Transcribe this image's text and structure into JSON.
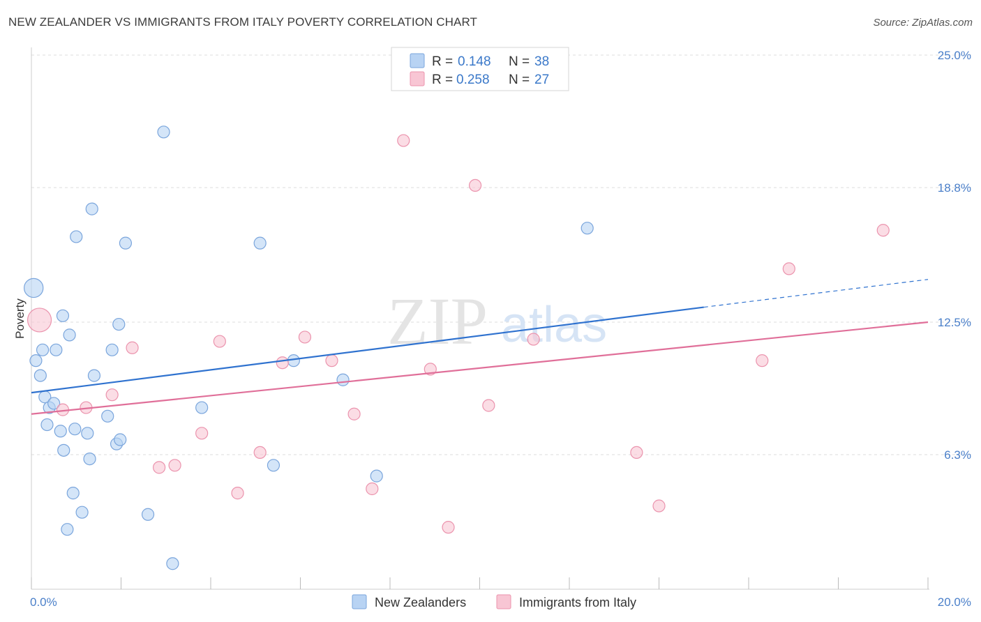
{
  "title": "NEW ZEALANDER VS IMMIGRANTS FROM ITALY POVERTY CORRELATION CHART",
  "source": "Source: ZipAtlas.com",
  "watermark": {
    "zip": "ZIP",
    "atlas": "atlas"
  },
  "colors": {
    "blue_fill": "#b8d3f3",
    "blue_stroke": "#7aa5dc",
    "blue_line": "#2f72cf",
    "pink_fill": "#f8c6d4",
    "pink_stroke": "#eb93ad",
    "pink_line": "#e06f99",
    "grid": "#dddddd",
    "axis_text": "#4a7fc9"
  },
  "legend_top": [
    {
      "r_label": "R =",
      "r_value": "0.148",
      "n_label": "N =",
      "n_value": "38"
    },
    {
      "r_label": "R =",
      "r_value": "0.258",
      "n_label": "N =",
      "n_value": "27"
    }
  ],
  "chart_data": {
    "type": "scatter",
    "title": "NEW ZEALANDER VS IMMIGRANTS FROM ITALY POVERTY CORRELATION CHART",
    "xlabel": "",
    "ylabel": "Poverty",
    "xlim": [
      0,
      20
    ],
    "ylim": [
      0,
      25
    ],
    "x_tick_labels": [
      "0.0%",
      "20.0%"
    ],
    "y_ticks": [
      6.3,
      12.5,
      18.8,
      25.0
    ],
    "y_tick_labels": [
      "6.3%",
      "12.5%",
      "18.8%",
      "25.0%"
    ],
    "legend": [
      "New Zealanders",
      "Immigrants from Italy"
    ],
    "series": [
      {
        "name": "New Zealanders",
        "r": 0.148,
        "n": 38,
        "trend": {
          "x0": 0,
          "y0": 9.2,
          "x1": 15.0,
          "y1": 13.2,
          "dash_to_x": 20,
          "dash_to_y": 14.5
        },
        "points": [
          {
            "x": 0.05,
            "y": 14.1,
            "s": 1.6
          },
          {
            "x": 0.1,
            "y": 10.7
          },
          {
            "x": 0.2,
            "y": 10.0
          },
          {
            "x": 0.25,
            "y": 11.2
          },
          {
            "x": 0.3,
            "y": 9.0
          },
          {
            "x": 0.35,
            "y": 7.7
          },
          {
            "x": 0.4,
            "y": 8.5
          },
          {
            "x": 0.5,
            "y": 8.7
          },
          {
            "x": 0.55,
            "y": 11.2
          },
          {
            "x": 0.65,
            "y": 7.4
          },
          {
            "x": 0.7,
            "y": 12.8
          },
          {
            "x": 0.72,
            "y": 6.5
          },
          {
            "x": 0.8,
            "y": 2.8
          },
          {
            "x": 0.85,
            "y": 11.9
          },
          {
            "x": 0.93,
            "y": 4.5
          },
          {
            "x": 0.97,
            "y": 7.5
          },
          {
            "x": 1.0,
            "y": 16.5
          },
          {
            "x": 1.13,
            "y": 3.6
          },
          {
            "x": 1.25,
            "y": 7.3
          },
          {
            "x": 1.3,
            "y": 6.1
          },
          {
            "x": 1.35,
            "y": 17.8
          },
          {
            "x": 1.4,
            "y": 10.0
          },
          {
            "x": 1.7,
            "y": 8.1
          },
          {
            "x": 1.8,
            "y": 11.2
          },
          {
            "x": 1.9,
            "y": 6.8
          },
          {
            "x": 1.95,
            "y": 12.4
          },
          {
            "x": 1.98,
            "y": 7.0
          },
          {
            "x": 2.1,
            "y": 16.2
          },
          {
            "x": 2.6,
            "y": 3.5
          },
          {
            "x": 2.95,
            "y": 21.4
          },
          {
            "x": 3.15,
            "y": 1.2
          },
          {
            "x": 3.8,
            "y": 8.5
          },
          {
            "x": 5.1,
            "y": 16.2
          },
          {
            "x": 5.4,
            "y": 5.8
          },
          {
            "x": 5.85,
            "y": 10.7
          },
          {
            "x": 6.95,
            "y": 9.8
          },
          {
            "x": 7.7,
            "y": 5.3
          },
          {
            "x": 12.4,
            "y": 16.9
          }
        ]
      },
      {
        "name": "Immigrants from Italy",
        "r": 0.258,
        "n": 27,
        "trend": {
          "x0": 0,
          "y0": 8.2,
          "x1": 20,
          "y1": 12.5
        },
        "points": [
          {
            "x": 0.18,
            "y": 12.6,
            "s": 2.0
          },
          {
            "x": 0.7,
            "y": 8.4
          },
          {
            "x": 1.22,
            "y": 8.5
          },
          {
            "x": 1.8,
            "y": 9.1
          },
          {
            "x": 2.25,
            "y": 11.3
          },
          {
            "x": 2.85,
            "y": 5.7
          },
          {
            "x": 3.2,
            "y": 5.8
          },
          {
            "x": 3.8,
            "y": 7.3
          },
          {
            "x": 4.2,
            "y": 11.6
          },
          {
            "x": 4.6,
            "y": 4.5
          },
          {
            "x": 5.1,
            "y": 6.4
          },
          {
            "x": 5.6,
            "y": 10.6
          },
          {
            "x": 6.1,
            "y": 11.8
          },
          {
            "x": 6.7,
            "y": 10.7
          },
          {
            "x": 7.2,
            "y": 8.2
          },
          {
            "x": 7.6,
            "y": 4.7
          },
          {
            "x": 8.3,
            "y": 21.0
          },
          {
            "x": 8.9,
            "y": 10.3
          },
          {
            "x": 9.3,
            "y": 2.9
          },
          {
            "x": 9.9,
            "y": 18.9
          },
          {
            "x": 10.2,
            "y": 8.6
          },
          {
            "x": 11.2,
            "y": 11.7
          },
          {
            "x": 13.5,
            "y": 6.4
          },
          {
            "x": 14.0,
            "y": 3.9
          },
          {
            "x": 16.3,
            "y": 10.7
          },
          {
            "x": 16.9,
            "y": 15.0
          },
          {
            "x": 19.0,
            "y": 16.8
          }
        ]
      }
    ]
  }
}
